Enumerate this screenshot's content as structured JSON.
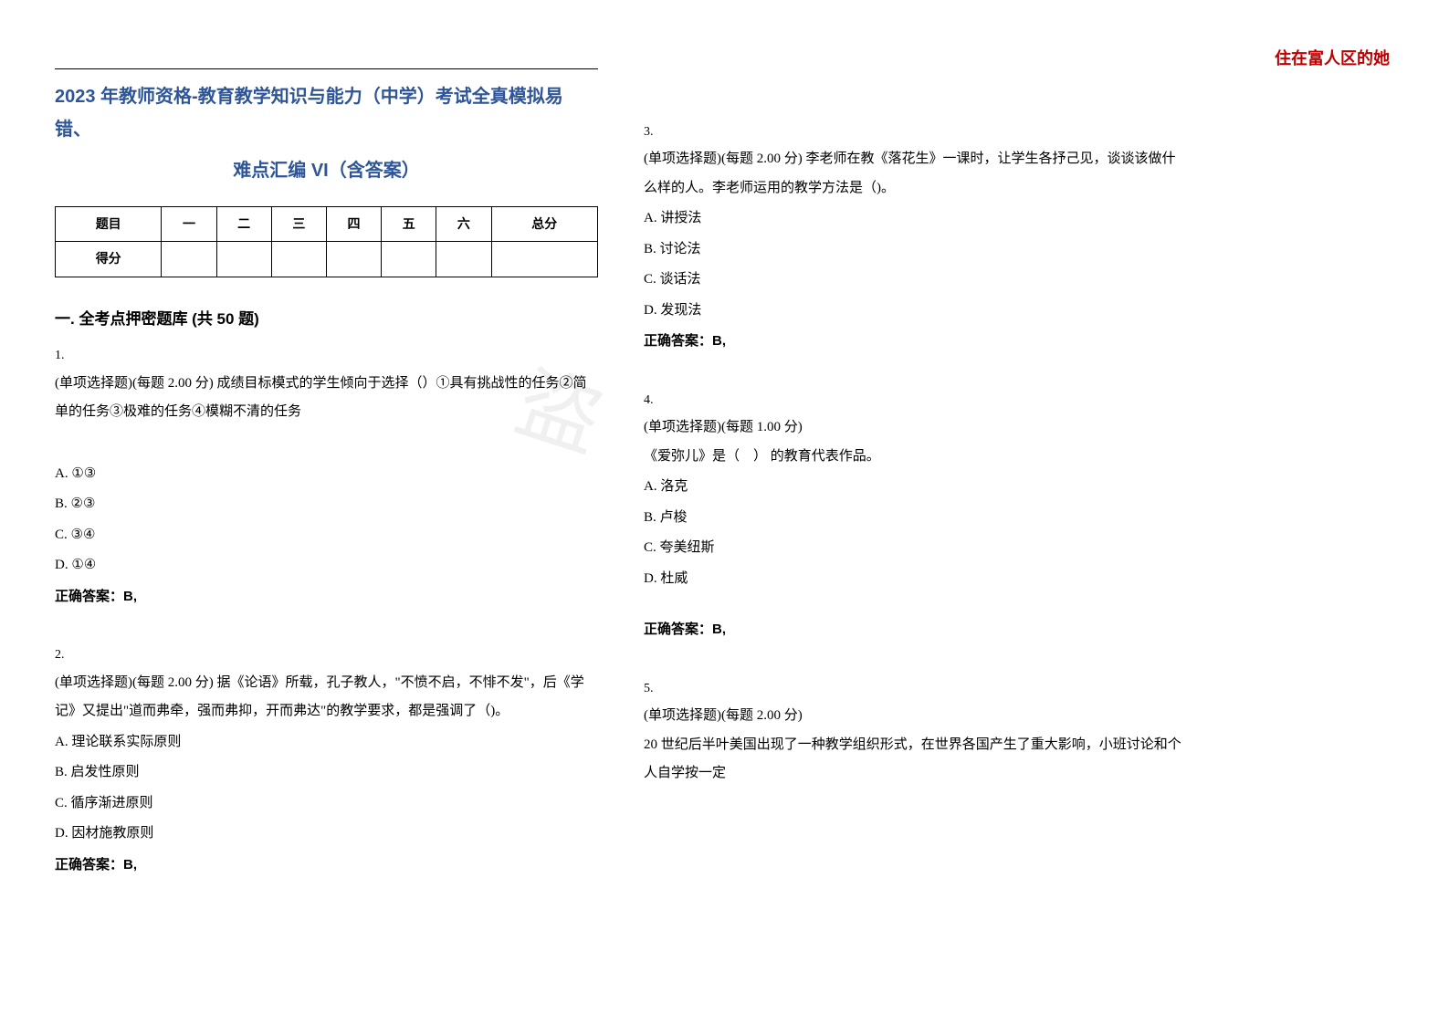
{
  "header_right": "住在富人区的她",
  "title_line1": "2023 年教师资格-教育教学知识与能力（中学）考试全真模拟易错、",
  "title_line2": "难点汇编 VI（含答案）",
  "score_table": {
    "headers": [
      "题目",
      "一",
      "二",
      "三",
      "四",
      "五",
      "六",
      "总分"
    ],
    "row2_label": "得分"
  },
  "section1_title": "一. 全考点押密题库 (共 50 题)",
  "watermark": "盗",
  "q1": {
    "num": "1.",
    "stem": "(单项选择题)(每题 2.00 分) 成绩目标模式的学生倾向于选择（）①具有挑战性的任务②简单的任务③极难的任务④模糊不清的任务",
    "optA": "A. ①③",
    "optB": "B. ②③",
    "optC": "C. ③④",
    "optD": "D. ①④",
    "answer": "正确答案：B,"
  },
  "q2": {
    "num": "2.",
    "stem": "(单项选择题)(每题 2.00 分) 据《论语》所载，孔子教人，\"不愤不启，不悱不发\"，后《学记》又提出\"道而弗牵，强而弗抑，开而弗达\"的教学要求，都是强调了（)。",
    "optA": "A.  理论联系实际原则",
    "optB": "B.  启发性原则",
    "optC": "C.  循序渐进原则",
    "optD": "D.  因材施教原则",
    "answer": "正确答案：B,"
  },
  "q3": {
    "num": "3.",
    "stem": "(单项选择题)(每题 2.00 分) 李老师在教《落花生》一课时，让学生各抒己见，谈谈该做什么样的人。李老师运用的教学方法是（)。",
    "optA": "A.  讲授法",
    "optB": "B.  讨论法",
    "optC": "C.  谈话法",
    "optD": "D.  发现法",
    "answer": "正确答案：B,"
  },
  "q4": {
    "num": "4.",
    "stem1": "(单项选择题)(每题 1.00 分)",
    "stem2": "《爱弥儿》是（　） 的教育代表作品。",
    "optA": "A.  洛克",
    "optB": "B.  卢梭",
    "optC": "C.  夸美纽斯",
    "optD": "D.  杜威",
    "answer": "正确答案：B,"
  },
  "q5": {
    "num": "5.",
    "stem1": "(单项选择题)(每题 2.00 分)",
    "stem2": "20 世纪后半叶美国出现了一种教学组织形式，在世界各国产生了重大影响，小班讨论和个人自学按一定"
  }
}
